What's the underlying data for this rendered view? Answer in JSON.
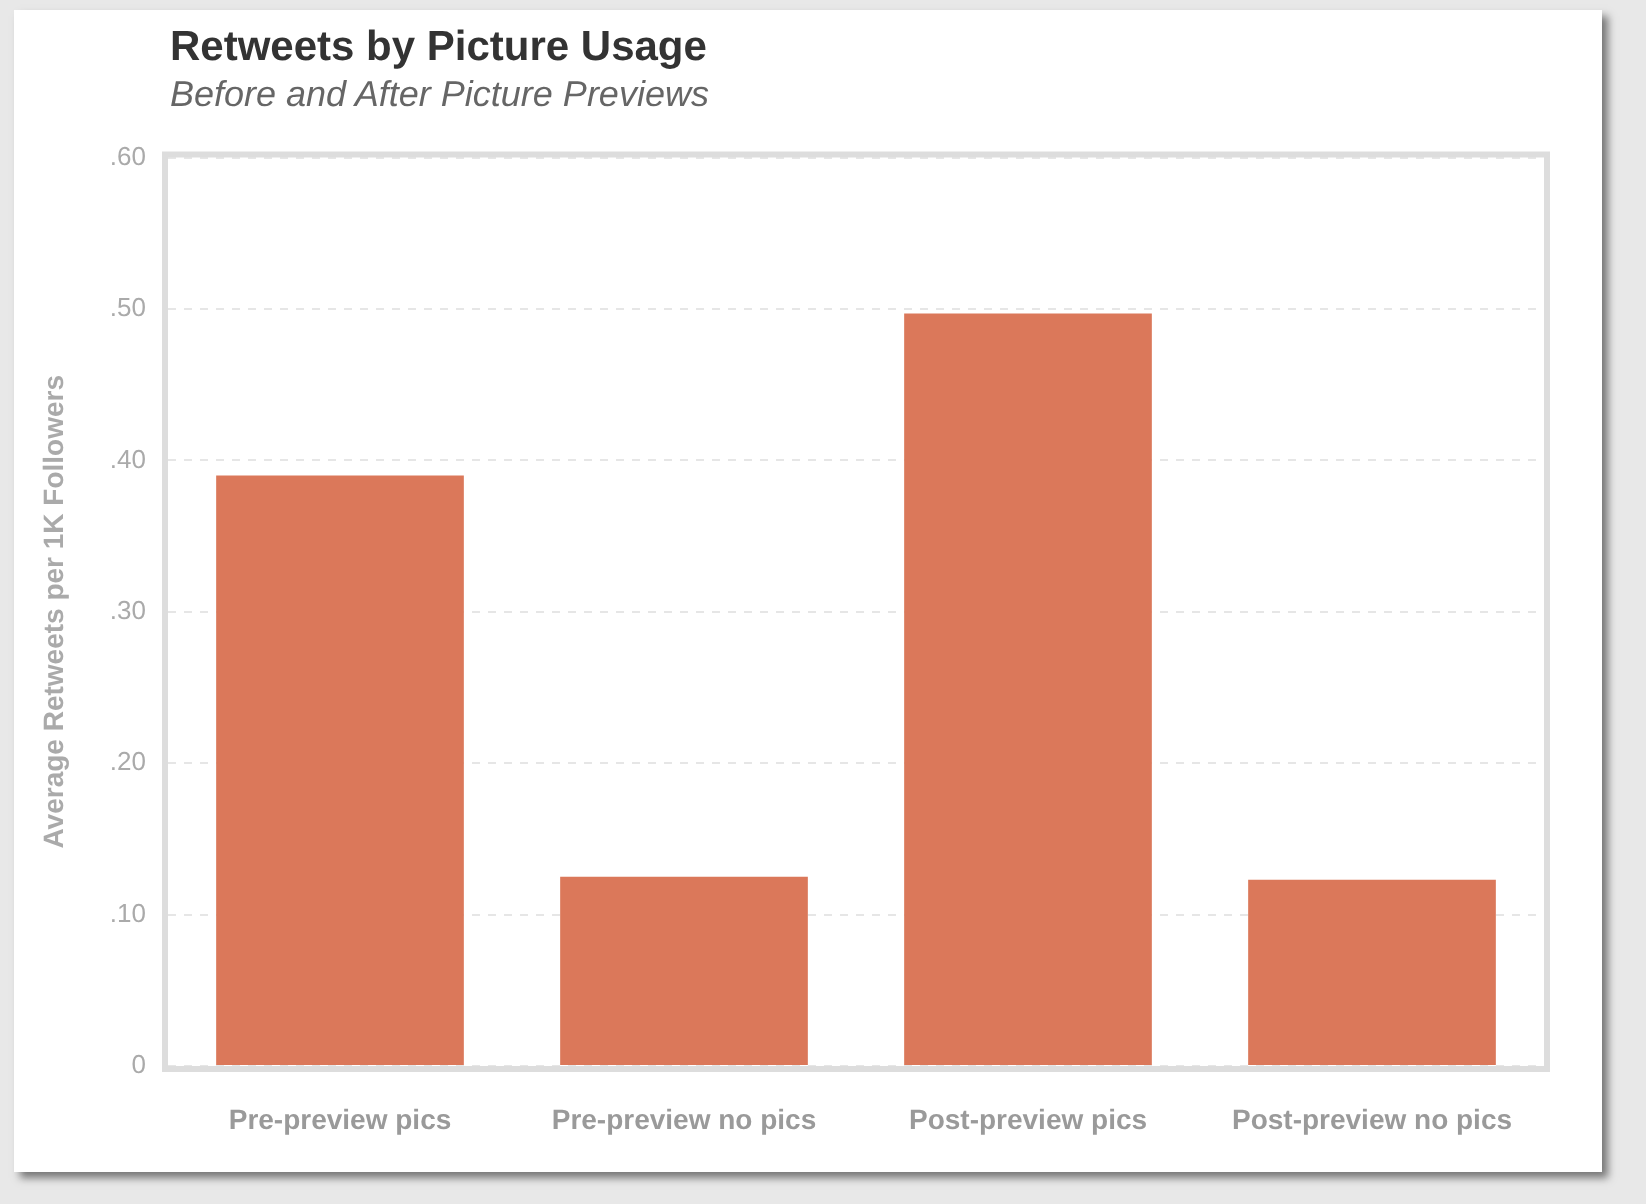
{
  "chart_data": {
    "type": "bar",
    "title": "Retweets by Picture Usage",
    "subtitle": "Before and After Picture Previews",
    "ylabel": "Average Retweets per 1K Followers",
    "categories": [
      "Pre-preview pics",
      "Pre-preview no pics",
      "Post-preview pics",
      "Post-preview no pics"
    ],
    "values": [
      0.39,
      0.125,
      0.497,
      0.123
    ],
    "color": "#db785a",
    "ylim": [
      0,
      0.6
    ],
    "yticks": [
      0,
      {
        "value": 0.1,
        "label": ".10"
      },
      {
        "value": 0.2,
        "label": ".20"
      },
      {
        "value": 0.3,
        "label": ".30"
      },
      {
        "value": 0.4,
        "label": ".40"
      },
      {
        "value": 0.5,
        "label": ".50"
      },
      {
        "value": 0.6,
        "label": ".60"
      }
    ],
    "grid": "y"
  }
}
